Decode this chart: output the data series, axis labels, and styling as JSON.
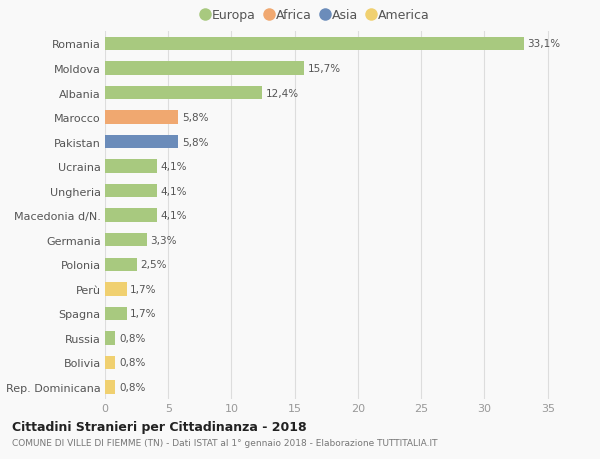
{
  "countries": [
    "Romania",
    "Moldova",
    "Albania",
    "Marocco",
    "Pakistan",
    "Ucraina",
    "Ungheria",
    "Macedonia d/N.",
    "Germania",
    "Polonia",
    "Perù",
    "Spagna",
    "Russia",
    "Bolivia",
    "Rep. Dominicana"
  ],
  "values": [
    33.1,
    15.7,
    12.4,
    5.8,
    5.8,
    4.1,
    4.1,
    4.1,
    3.3,
    2.5,
    1.7,
    1.7,
    0.8,
    0.8,
    0.8
  ],
  "labels": [
    "33,1%",
    "15,7%",
    "12,4%",
    "5,8%",
    "5,8%",
    "4,1%",
    "4,1%",
    "4,1%",
    "3,3%",
    "2,5%",
    "1,7%",
    "1,7%",
    "0,8%",
    "0,8%",
    "0,8%"
  ],
  "continents": [
    "Europa",
    "Europa",
    "Europa",
    "Africa",
    "Asia",
    "Europa",
    "Europa",
    "Europa",
    "Europa",
    "Europa",
    "America",
    "Europa",
    "Europa",
    "America",
    "America"
  ],
  "colors": {
    "Europa": "#a8c97f",
    "Africa": "#f0a870",
    "Asia": "#6b8cba",
    "America": "#f0d070"
  },
  "title": "Cittadini Stranieri per Cittadinanza - 2018",
  "subtitle": "COMUNE DI VILLE DI FIEMME (TN) - Dati ISTAT al 1° gennaio 2018 - Elaborazione TUTTITALIA.IT",
  "xlim": [
    0,
    37
  ],
  "xticks": [
    0,
    5,
    10,
    15,
    20,
    25,
    30,
    35
  ],
  "background_color": "#f9f9f9",
  "grid_color": "#dddddd",
  "bar_height": 0.55,
  "legend_order": [
    "Europa",
    "Africa",
    "Asia",
    "America"
  ]
}
